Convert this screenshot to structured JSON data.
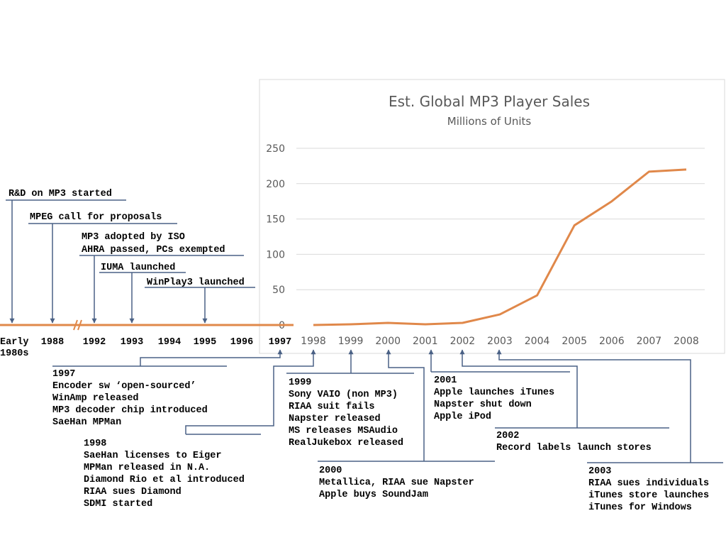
{
  "colors": {
    "accent": "#e0884a",
    "connector": "#4a6185",
    "grid": "#d9d9d9",
    "text": "#595959"
  },
  "timeline": {
    "early_label": [
      "Early",
      "1980s"
    ],
    "years": [
      "1988",
      "1992",
      "1993",
      "1994",
      "1995",
      "1996",
      "1997"
    ],
    "events_before": [
      {
        "label": "R&D on MP3 started"
      },
      {
        "label": "MPEG call for proposals"
      },
      {
        "label": "MP3 adopted by ISO"
      },
      {
        "label": "AHRA passed, PCs exempted"
      },
      {
        "label": "IUMA launched"
      },
      {
        "label": "WinPlay3 launched"
      }
    ]
  },
  "milestones": [
    {
      "year": "1997",
      "items": [
        "Encoder sw ‘open-sourced’",
        "WinAmp released",
        "MP3 decoder chip introduced",
        "SaeHan MPMan"
      ]
    },
    {
      "year": "1998",
      "items": [
        "SaeHan licenses to Eiger",
        "MPMan released in N.A.",
        "Diamond Rio et al introduced",
        "RIAA sues Diamond",
        "SDMI started"
      ]
    },
    {
      "year": "1999",
      "items": [
        "Sony VAIO (non MP3)",
        "RIAA suit fails",
        "Napster released",
        "MS releases MSAudio",
        "RealJukebox released"
      ]
    },
    {
      "year": "2000",
      "items": [
        "Metallica, RIAA sue Napster",
        "Apple buys SoundJam"
      ]
    },
    {
      "year": "2001",
      "items": [
        "Apple launches iTunes",
        "Napster shut down",
        "Apple iPod"
      ]
    },
    {
      "year": "2002",
      "items": [
        "Record labels launch stores"
      ]
    },
    {
      "year": "2003",
      "items": [
        "RIAA sues individuals",
        "iTunes store launches",
        "iTunes for Windows"
      ]
    }
  ],
  "chart_data": {
    "type": "line",
    "title": "Est. Global MP3 Player Sales",
    "subtitle": "Millions of Units",
    "x": [
      "1998",
      "1999",
      "2000",
      "2001",
      "2002",
      "2003",
      "2004",
      "2005",
      "2006",
      "2007",
      "2008"
    ],
    "series": [
      {
        "values": [
          0,
          1,
          3,
          1,
          3,
          15,
          42,
          141,
          175,
          217,
          220
        ]
      }
    ],
    "ylim": [
      0,
      250
    ],
    "yticks": [
      0,
      50,
      100,
      150,
      200,
      250
    ],
    "grid": true,
    "legend": "none"
  }
}
